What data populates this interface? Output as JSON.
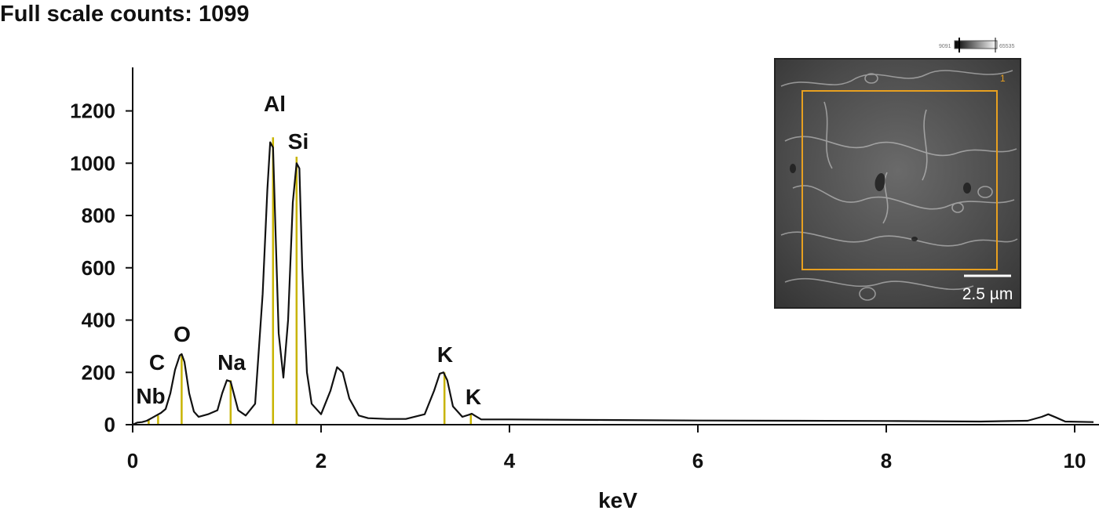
{
  "header": {
    "full_scale_text": "Full scale counts: 1099"
  },
  "chart_data": {
    "type": "line",
    "title": "",
    "xlabel": "keV",
    "ylabel": "",
    "xlim": [
      0,
      10.2
    ],
    "ylim": [
      0,
      1380
    ],
    "x_ticks": [
      0,
      2,
      4,
      6,
      8,
      10
    ],
    "y_ticks": [
      0,
      200,
      400,
      600,
      800,
      1000,
      1200
    ],
    "grid": false,
    "series": [
      {
        "x": [
          0.0,
          0.05,
          0.1,
          0.15,
          0.2,
          0.25,
          0.3,
          0.35,
          0.4,
          0.45,
          0.5,
          0.52,
          0.55,
          0.6,
          0.65,
          0.7,
          0.8,
          0.9,
          0.95,
          1.0,
          1.04,
          1.08,
          1.12,
          1.2,
          1.3,
          1.38,
          1.43,
          1.46,
          1.49,
          1.52,
          1.55,
          1.6,
          1.65,
          1.7,
          1.74,
          1.77,
          1.8,
          1.85,
          1.9,
          2.0,
          2.1,
          2.17,
          2.23,
          2.3,
          2.4,
          2.5,
          2.7,
          2.9,
          3.1,
          3.2,
          3.26,
          3.3,
          3.34,
          3.4,
          3.5,
          3.57,
          3.6,
          3.63,
          3.7,
          4.0,
          5.0,
          6.0,
          7.0,
          8.0,
          9.0,
          9.5,
          9.65,
          9.72,
          9.8,
          9.9,
          10.2
        ],
        "y": [
          0,
          8,
          10,
          15,
          25,
          35,
          45,
          60,
          120,
          210,
          265,
          270,
          240,
          120,
          50,
          30,
          40,
          55,
          120,
          170,
          165,
          110,
          55,
          35,
          80,
          500,
          900,
          1080,
          1060,
          700,
          350,
          180,
          400,
          850,
          1000,
          980,
          600,
          200,
          80,
          40,
          130,
          220,
          200,
          100,
          35,
          25,
          22,
          22,
          40,
          130,
          195,
          200,
          170,
          70,
          30,
          38,
          42,
          35,
          20,
          20,
          18,
          16,
          15,
          14,
          12,
          15,
          30,
          40,
          28,
          12,
          10
        ]
      }
    ],
    "peak_markers": [
      {
        "label": "Nb",
        "x": 0.17,
        "y": 20
      },
      {
        "label": "C",
        "x": 0.27,
        "y": 35
      },
      {
        "label": "O",
        "x": 0.52,
        "y": 270
      },
      {
        "label": "Na",
        "x": 1.04,
        "y": 170
      },
      {
        "label": "Al",
        "x": 1.49,
        "y": 1099
      },
      {
        "label": "Si",
        "x": 1.74,
        "y": 1025
      },
      {
        "label": "K",
        "x": 3.31,
        "y": 200
      },
      {
        "label": "K",
        "x": 3.59,
        "y": 42
      }
    ],
    "line_color": "#111111",
    "marker_color": "#c8b400"
  },
  "inset": {
    "scale_bar_text": "2.5 µm",
    "roi_label": "1",
    "colorbar_min_text": "9091",
    "colorbar_max_text": "65535",
    "roi_color": "#e8a020"
  }
}
